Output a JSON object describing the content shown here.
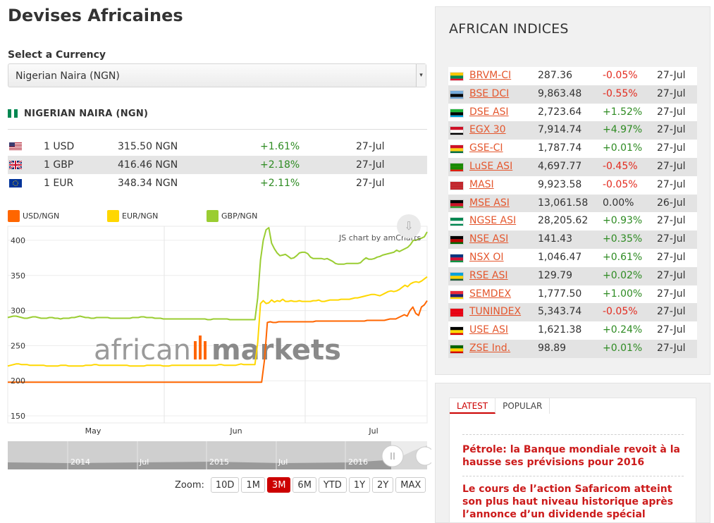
{
  "page": {
    "title": "Devises Africaines"
  },
  "currency_select": {
    "label": "Select a Currency",
    "value": "Nigerian Naira (NGN)"
  },
  "selected_currency": {
    "title": "NIGERIAN NAIRA (NGN)"
  },
  "rates": [
    {
      "flag": "us-flag-icon",
      "base": "1 USD",
      "value": "315.50 NGN",
      "change": "+1.61%",
      "date": "27-Jul"
    },
    {
      "flag": "uk-flag-icon",
      "base": "1 GBP",
      "value": "416.46 NGN",
      "change": "+2.18%",
      "date": "27-Jul"
    },
    {
      "flag": "eu-flag-icon",
      "base": "1 EUR",
      "value": "348.34 NGN",
      "change": "+2.11%",
      "date": "27-Jul"
    }
  ],
  "chart_data": {
    "type": "line",
    "title": "",
    "credit": "JS chart by amCharts",
    "watermark": "africanmarkets",
    "yticks": [
      "400",
      "350",
      "300",
      "250",
      "200",
      "150"
    ],
    "ylim": [
      140,
      420
    ],
    "xticks": [
      "May",
      "Jun",
      "Jul"
    ],
    "series": [
      {
        "name": "USD/NGN",
        "color": "#ff6600",
        "values": [
          198,
          198,
          198,
          198,
          198,
          198,
          198,
          198,
          198,
          198,
          198,
          198,
          198,
          198,
          198,
          198,
          198,
          198,
          198,
          198,
          198,
          198,
          198,
          198,
          198,
          198,
          198,
          198,
          198,
          198,
          198,
          198,
          198,
          198,
          198,
          198,
          198,
          198,
          198,
          198,
          198,
          198,
          198,
          198,
          198,
          198,
          198,
          198,
          198,
          198,
          198,
          198,
          198,
          198,
          198,
          198,
          198,
          198,
          198,
          198,
          198,
          198,
          198,
          198,
          198,
          198,
          198,
          198,
          198,
          198,
          198,
          198,
          198,
          198,
          198,
          198,
          198,
          198,
          198,
          198,
          198,
          198,
          198,
          198,
          198,
          198,
          198,
          198,
          198,
          198,
          230,
          283,
          284,
          283,
          283,
          284,
          284,
          284,
          284,
          284,
          284,
          284,
          284,
          284,
          284,
          284,
          284,
          284,
          285,
          285,
          285,
          285,
          285,
          285,
          285,
          285,
          285,
          285,
          285,
          285,
          285,
          285,
          285,
          285,
          285,
          285,
          286,
          286,
          286,
          286,
          286,
          286,
          286,
          287,
          288,
          288,
          288,
          290,
          292,
          294,
          292,
          300,
          305,
          296,
          293,
          305,
          308,
          314
        ]
      },
      {
        "name": "EUR/NGN",
        "color": "#ffd700",
        "values": [
          221,
          222,
          223,
          224,
          224,
          223,
          223,
          223,
          222,
          222,
          222,
          222,
          222,
          222,
          221,
          221,
          221,
          221,
          221,
          222,
          222,
          222,
          221,
          221,
          221,
          221,
          221,
          221,
          222,
          222,
          222,
          223,
          223,
          222,
          222,
          222,
          222,
          222,
          222,
          222,
          222,
          222,
          222,
          222,
          221,
          221,
          221,
          221,
          221,
          221,
          222,
          222,
          222,
          222,
          222,
          222,
          221,
          221,
          221,
          222,
          222,
          222,
          222,
          222,
          222,
          222,
          222,
          222,
          222,
          222,
          222,
          222,
          222,
          222,
          222,
          222,
          223,
          223,
          222,
          222,
          222,
          222,
          222,
          223,
          224,
          223,
          223,
          223,
          223,
          223,
          254,
          310,
          314,
          310,
          311,
          315,
          312,
          314,
          313,
          316,
          313,
          313,
          314,
          313,
          313,
          314,
          313,
          313,
          313,
          313,
          314,
          314,
          315,
          313,
          313,
          314,
          315,
          315,
          315,
          315,
          316,
          316,
          316,
          316,
          317,
          318,
          318,
          319,
          320,
          321,
          322,
          323,
          323,
          322,
          321,
          323,
          325,
          327,
          328,
          327,
          328,
          330,
          333,
          336,
          334,
          338,
          340,
          341,
          340,
          342,
          345,
          348
        ]
      },
      {
        "name": "GBP/NGN",
        "color": "#9acd32",
        "values": [
          290,
          291,
          292,
          292,
          291,
          290,
          289,
          289,
          290,
          291,
          291,
          290,
          289,
          289,
          289,
          290,
          290,
          289,
          289,
          288,
          289,
          289,
          289,
          290,
          290,
          291,
          292,
          291,
          290,
          290,
          289,
          289,
          290,
          290,
          290,
          290,
          290,
          289,
          289,
          289,
          289,
          289,
          289,
          289,
          289,
          290,
          290,
          290,
          291,
          291,
          290,
          290,
          290,
          289,
          289,
          289,
          288,
          288,
          288,
          288,
          288,
          288,
          288,
          288,
          288,
          288,
          288,
          288,
          288,
          288,
          288,
          288,
          287,
          287,
          288,
          288,
          288,
          288,
          288,
          288,
          287,
          287,
          287,
          287,
          287,
          287,
          287,
          287,
          287,
          287,
          318,
          372,
          400,
          415,
          418,
          396,
          388,
          382,
          378,
          379,
          380,
          377,
          374,
          375,
          378,
          382,
          383,
          383,
          381,
          376,
          374,
          374,
          374,
          374,
          373,
          374,
          372,
          370,
          367,
          366,
          366,
          366,
          367,
          367,
          367,
          367,
          367,
          368,
          372,
          375,
          373,
          373,
          374,
          376,
          377,
          379,
          380,
          381,
          382,
          383,
          386,
          384,
          386,
          388,
          390,
          394,
          400,
          400,
          402,
          403,
          405,
          412
        ]
      }
    ]
  },
  "navigator": {
    "labels": [
      "2014",
      "Jul",
      "2015",
      "Jul",
      "2016"
    ]
  },
  "zoom": {
    "label": "Zoom:",
    "options": [
      "10D",
      "1M",
      "3M",
      "6M",
      "YTD",
      "1Y",
      "2Y",
      "MAX"
    ],
    "active": "3M"
  },
  "indices": {
    "title": "AFRICAN INDICES",
    "rows": [
      {
        "flag": "brvm-flag-icon",
        "colors": [
          "#f7c600",
          "#008751",
          "#e8112d"
        ],
        "name": "BRVM-CI",
        "value": "287.36",
        "change": "-0.05%",
        "date": "27-Jul"
      },
      {
        "flag": "botswana-flag-icon",
        "colors": [
          "#75aadb",
          "#000000",
          "#75aadb"
        ],
        "name": "BSE DCI",
        "value": "9,863.48",
        "change": "-0.55%",
        "date": "27-Jul"
      },
      {
        "flag": "tanzania-flag-icon",
        "colors": [
          "#1eb53a",
          "#000000",
          "#00a3dd"
        ],
        "name": "DSE ASI",
        "value": "2,723.64",
        "change": "+1.52%",
        "date": "27-Jul"
      },
      {
        "flag": "egypt-flag-icon",
        "colors": [
          "#ce1126",
          "#ffffff",
          "#000000"
        ],
        "name": "EGX 30",
        "value": "7,914.74",
        "change": "+4.97%",
        "date": "27-Jul"
      },
      {
        "flag": "ghana-flag-icon",
        "colors": [
          "#ce1126",
          "#fcd116",
          "#006b3f"
        ],
        "name": "GSE-CI",
        "value": "1,787.74",
        "change": "+0.01%",
        "date": "27-Jul"
      },
      {
        "flag": "zambia-flag-icon",
        "colors": [
          "#198a00",
          "#198a00",
          "#de2010"
        ],
        "name": "LuSE ASI",
        "value": "4,697.77",
        "change": "-0.45%",
        "date": "27-Jul"
      },
      {
        "flag": "morocco-flag-icon",
        "colors": [
          "#c1272d",
          "#c1272d",
          "#c1272d"
        ],
        "name": "MASI",
        "value": "9,923.58",
        "change": "-0.05%",
        "date": "27-Jul"
      },
      {
        "flag": "malawi-flag-icon",
        "colors": [
          "#000000",
          "#ce1126",
          "#339e35"
        ],
        "name": "MSE ASI",
        "value": "13,061.58",
        "change": "0.00%",
        "date": "26-Jul"
      },
      {
        "flag": "nigeria-flag-icon",
        "colors": [
          "#008751",
          "#ffffff",
          "#008751"
        ],
        "name": "NGSE ASI",
        "value": "28,205.62",
        "change": "+0.93%",
        "date": "27-Jul"
      },
      {
        "flag": "kenya-flag-icon",
        "colors": [
          "#000000",
          "#bb0000",
          "#006600"
        ],
        "name": "NSE ASI",
        "value": "141.43",
        "change": "+0.35%",
        "date": "27-Jul"
      },
      {
        "flag": "namibia-flag-icon",
        "colors": [
          "#003580",
          "#d21034",
          "#009543"
        ],
        "name": "NSX OI",
        "value": "1,046.47",
        "change": "+0.61%",
        "date": "27-Jul"
      },
      {
        "flag": "rwanda-flag-icon",
        "colors": [
          "#00a1de",
          "#fad201",
          "#20603d"
        ],
        "name": "RSE ASI",
        "value": "129.79",
        "change": "+0.02%",
        "date": "27-Jul"
      },
      {
        "flag": "mauritius-flag-icon",
        "colors": [
          "#ea2839",
          "#1a206d",
          "#ffd500"
        ],
        "name": "SEMDEX",
        "value": "1,777.50",
        "change": "+1.00%",
        "date": "27-Jul"
      },
      {
        "flag": "tunisia-flag-icon",
        "colors": [
          "#e70013",
          "#e70013",
          "#e70013"
        ],
        "name": "TUNINDEX",
        "value": "5,343.74",
        "change": "-0.05%",
        "date": "27-Jul"
      },
      {
        "flag": "uganda-flag-icon",
        "colors": [
          "#000000",
          "#fcdc04",
          "#d90000"
        ],
        "name": "USE ASI",
        "value": "1,621.38",
        "change": "+0.24%",
        "date": "27-Jul"
      },
      {
        "flag": "zimbabwe-flag-icon",
        "colors": [
          "#006400",
          "#ffd200",
          "#d40000"
        ],
        "name": "ZSE Ind.",
        "value": "98.89",
        "change": "+0.01%",
        "date": "27-Jul"
      }
    ]
  },
  "news": {
    "tabs": [
      "LATEST",
      "POPULAR"
    ],
    "active_tab": "LATEST",
    "items": [
      "Pétrole: la Banque mondiale revoit à la hausse ses prévisions pour 2016",
      "Le cours de l’action Safaricom atteint son plus haut niveau historique après l’annonce d’un dividende spécial"
    ]
  },
  "colors": {
    "positive": "#2e8b22",
    "negative": "#e32b1f",
    "link": "#e4572e",
    "accent": "#cc0000"
  }
}
